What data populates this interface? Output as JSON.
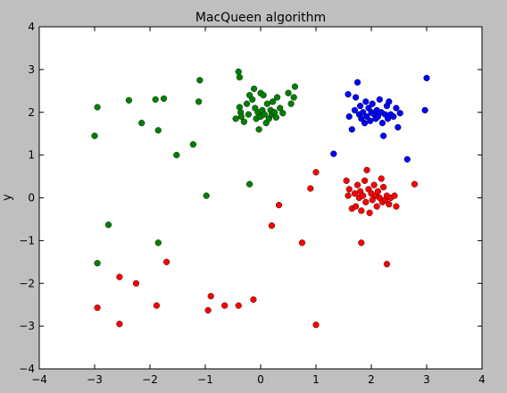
{
  "chart_data": {
    "type": "scatter",
    "title": "MacQueen algorithm",
    "xlabel": "",
    "ylabel": "y",
    "xlim": [
      -4,
      4
    ],
    "ylim": [
      -4,
      4
    ],
    "xticks": [
      "−4",
      "−3",
      "−2",
      "−1",
      "0",
      "1",
      "2",
      "3",
      "4"
    ],
    "yticks": [
      "−4",
      "−3",
      "−2",
      "−1",
      "0",
      "1",
      "2",
      "3",
      "4"
    ],
    "grid": false,
    "series": [
      {
        "color": "#008000",
        "points": [
          [
            -0.4,
            2.95
          ],
          [
            -0.38,
            2.82
          ],
          [
            -0.38,
            2.12
          ],
          [
            -0.36,
            2.0
          ],
          [
            -0.35,
            1.9
          ],
          [
            -0.45,
            1.85
          ],
          [
            -0.3,
            1.78
          ],
          [
            -0.25,
            2.2
          ],
          [
            -0.22,
            1.95
          ],
          [
            -0.2,
            2.4
          ],
          [
            -0.15,
            2.3
          ],
          [
            -0.12,
            2.55
          ],
          [
            -0.1,
            2.1
          ],
          [
            -0.08,
            1.85
          ],
          [
            -0.05,
            2.0
          ],
          [
            -0.03,
            1.6
          ],
          [
            0.0,
            1.9
          ],
          [
            0.0,
            2.45
          ],
          [
            0.03,
            2.05
          ],
          [
            0.05,
            2.4
          ],
          [
            0.07,
            1.95
          ],
          [
            0.1,
            1.75
          ],
          [
            0.12,
            2.2
          ],
          [
            0.15,
            1.85
          ],
          [
            0.18,
            2.05
          ],
          [
            0.2,
            1.95
          ],
          [
            0.22,
            2.25
          ],
          [
            0.25,
            2.0
          ],
          [
            0.28,
            1.88
          ],
          [
            0.3,
            2.35
          ],
          [
            0.35,
            2.1
          ],
          [
            0.4,
            1.98
          ],
          [
            0.5,
            2.45
          ],
          [
            0.6,
            2.35
          ],
          [
            0.62,
            2.6
          ],
          [
            0.55,
            2.2
          ],
          [
            -1.1,
            2.75
          ],
          [
            -1.12,
            2.25
          ],
          [
            -1.75,
            2.32
          ],
          [
            -1.9,
            2.3
          ],
          [
            -2.38,
            2.28
          ],
          [
            -2.15,
            1.75
          ],
          [
            -1.85,
            1.58
          ],
          [
            -2.95,
            2.12
          ],
          [
            -3.0,
            1.45
          ],
          [
            -1.22,
            1.25
          ],
          [
            -1.52,
            1.0
          ],
          [
            -0.98,
            0.05
          ],
          [
            -0.2,
            0.32
          ],
          [
            -2.75,
            -0.63
          ],
          [
            -1.85,
            -1.05
          ],
          [
            -2.95,
            -1.53
          ]
        ]
      },
      {
        "color": "#0000ff",
        "points": [
          [
            1.58,
            2.42
          ],
          [
            1.6,
            1.9
          ],
          [
            1.65,
            1.6
          ],
          [
            1.7,
            2.05
          ],
          [
            1.72,
            2.35
          ],
          [
            1.75,
            2.7
          ],
          [
            1.78,
            1.95
          ],
          [
            1.8,
            2.15
          ],
          [
            1.82,
            1.85
          ],
          [
            1.85,
            2.0
          ],
          [
            1.88,
            1.75
          ],
          [
            1.9,
            2.25
          ],
          [
            1.92,
            1.9
          ],
          [
            1.95,
            2.1
          ],
          [
            1.98,
            1.8
          ],
          [
            2.0,
            2.0
          ],
          [
            2.02,
            2.2
          ],
          [
            2.05,
            1.95
          ],
          [
            2.08,
            1.85
          ],
          [
            2.1,
            2.05
          ],
          [
            2.12,
            1.9
          ],
          [
            2.15,
            2.3
          ],
          [
            2.18,
            2.0
          ],
          [
            2.2,
            1.75
          ],
          [
            2.22,
            1.45
          ],
          [
            2.25,
            1.95
          ],
          [
            2.28,
            2.15
          ],
          [
            2.3,
            1.85
          ],
          [
            2.32,
            2.25
          ],
          [
            2.35,
            1.95
          ],
          [
            2.4,
            1.9
          ],
          [
            2.45,
            2.1
          ],
          [
            2.48,
            1.65
          ],
          [
            2.52,
            1.98
          ],
          [
            2.65,
            0.9
          ],
          [
            2.97,
            2.05
          ],
          [
            3.0,
            2.8
          ],
          [
            1.32,
            1.03
          ]
        ]
      },
      {
        "color": "#ff0000",
        "points": [
          [
            1.55,
            0.4
          ],
          [
            1.58,
            0.05
          ],
          [
            1.6,
            0.2
          ],
          [
            1.65,
            -0.25
          ],
          [
            1.7,
            0.1
          ],
          [
            1.72,
            -0.2
          ],
          [
            1.75,
            0.3
          ],
          [
            1.78,
            0.0
          ],
          [
            1.8,
            0.15
          ],
          [
            1.82,
            -0.3
          ],
          [
            1.85,
            0.05
          ],
          [
            1.88,
            0.4
          ],
          [
            1.9,
            -0.1
          ],
          [
            1.92,
            0.65
          ],
          [
            1.95,
            0.2
          ],
          [
            1.97,
            -0.35
          ],
          [
            2.0,
            0.1
          ],
          [
            2.02,
            -0.05
          ],
          [
            2.05,
            0.3
          ],
          [
            2.08,
            0.05
          ],
          [
            2.1,
            -0.2
          ],
          [
            2.12,
            0.15
          ],
          [
            2.15,
            0.0
          ],
          [
            2.18,
            0.45
          ],
          [
            2.2,
            -0.1
          ],
          [
            2.22,
            0.25
          ],
          [
            2.25,
            -0.05
          ],
          [
            2.28,
            0.05
          ],
          [
            2.32,
            -0.15
          ],
          [
            2.35,
            0.0
          ],
          [
            2.42,
            0.05
          ],
          [
            2.45,
            -0.2
          ],
          [
            2.78,
            0.32
          ],
          [
            1.0,
            0.6
          ],
          [
            0.9,
            0.22
          ],
          [
            0.33,
            -0.17
          ],
          [
            0.2,
            -0.65
          ],
          [
            0.75,
            -1.05
          ],
          [
            1.82,
            -1.05
          ],
          [
            2.28,
            -1.55
          ],
          [
            -1.7,
            -1.5
          ],
          [
            -2.55,
            -1.85
          ],
          [
            -2.25,
            -2.0
          ],
          [
            -1.88,
            -2.52
          ],
          [
            -2.95,
            -2.57
          ],
          [
            -2.55,
            -2.95
          ],
          [
            -0.9,
            -2.3
          ],
          [
            -0.95,
            -2.63
          ],
          [
            -0.65,
            -2.52
          ],
          [
            -0.4,
            -2.52
          ],
          [
            -0.13,
            -2.38
          ],
          [
            1.0,
            -2.97
          ]
        ]
      }
    ]
  }
}
